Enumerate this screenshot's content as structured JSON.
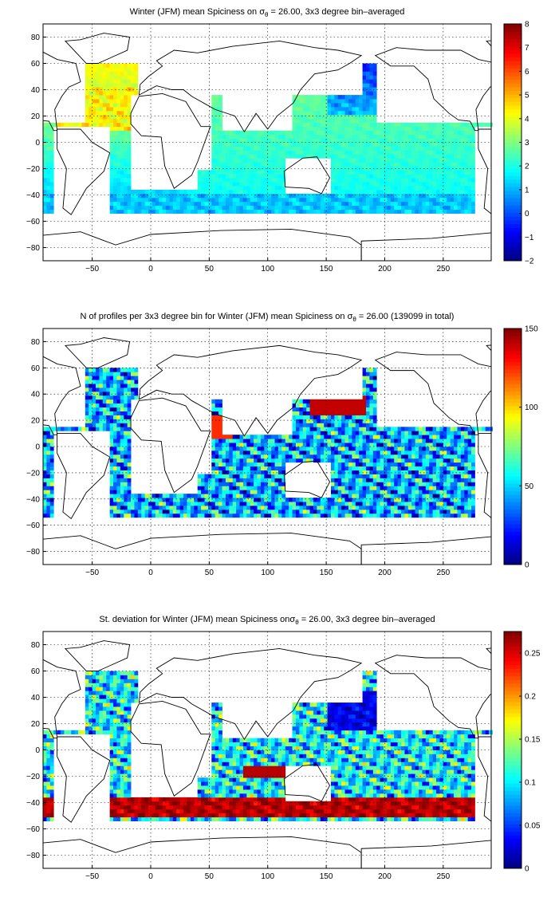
{
  "chart_data": [
    {
      "type": "heatmap",
      "title": "Winter (JFM) mean Spiciness on σθ = 26.00, 3x3 degree bin–averaged",
      "title_parts": {
        "pre": "Winter (JFM) mean Spiciness on σ",
        "sub": "θ",
        "post": " = 26.00, 3x3 degree bin–averaged"
      },
      "x_ticks": [
        -50,
        0,
        50,
        100,
        150,
        200,
        250
      ],
      "y_ticks": [
        80,
        60,
        40,
        20,
        0,
        -20,
        -40,
        -60,
        -80
      ],
      "xlim": [
        -92,
        291
      ],
      "ylim": [
        -90,
        90
      ],
      "colorbar": {
        "ticks": [
          8,
          7,
          6,
          5,
          4,
          3,
          2,
          1,
          0,
          -1,
          -2
        ],
        "range": [
          -2,
          8
        ]
      },
      "regions": [
        {
          "lon": [
            -75,
            -15
          ],
          "lat": [
            10,
            42
          ],
          "value": 4.4
        },
        {
          "lon": [
            -50,
            15
          ],
          "lat": [
            -30,
            10
          ],
          "value": 3.1
        },
        {
          "lon": [
            -60,
            20
          ],
          "lat": [
            -50,
            -30
          ],
          "value": 2.2
        },
        {
          "lon": [
            40,
            110
          ],
          "lat": [
            -35,
            20
          ],
          "value": 2.5
        },
        {
          "lon": [
            110,
            180
          ],
          "lat": [
            -45,
            10
          ],
          "value": 2.4
        },
        {
          "lon": [
            180,
            285
          ],
          "lat": [
            -45,
            5
          ],
          "value": 2.0
        },
        {
          "lon": [
            150,
            280
          ],
          "lat": [
            20,
            55
          ],
          "value": 0.4
        },
        {
          "lon": [
            120,
            280
          ],
          "lat": [
            5,
            20
          ],
          "value": 1.8
        },
        {
          "lon": [
            20,
            150
          ],
          "lat": [
            -55,
            -40
          ],
          "value": 1.3
        }
      ]
    },
    {
      "type": "heatmap",
      "title": "N of profiles per 3x3 degree bin for Winter (JFM) mean Spiciness on σθ = 26.00 (139099 in total)",
      "title_parts": {
        "pre": "N of profiles per 3x3 degree bin for Winter (JFM) mean Spiciness on σ",
        "sub": "θ",
        "post": " = 26.00 (139099 in total)"
      },
      "x_ticks": [
        -50,
        0,
        50,
        100,
        150,
        200,
        250
      ],
      "y_ticks": [
        80,
        60,
        40,
        20,
        0,
        -20,
        -40,
        -60,
        -80
      ],
      "xlim": [
        -92,
        291
      ],
      "ylim": [
        -90,
        90
      ],
      "colorbar": {
        "ticks": [
          150,
          100,
          50,
          0
        ],
        "range": [
          0,
          150
        ]
      },
      "regions": [
        {
          "lon": [
            -70,
            20
          ],
          "lat": [
            -50,
            40
          ],
          "value": 45
        },
        {
          "lon": [
            20,
            120
          ],
          "lat": [
            -50,
            25
          ],
          "value": 60
        },
        {
          "lon": [
            120,
            285
          ],
          "lat": [
            -50,
            50
          ],
          "value": 60
        },
        {
          "lon": [
            140,
            180
          ],
          "lat": [
            25,
            40
          ],
          "value": 140
        }
      ]
    },
    {
      "type": "heatmap",
      "title": "St. deviation for Winter (JFM) mean Spiciness onσθ = 26.00, 3x3 degree bin–averaged",
      "title_parts": {
        "pre": "St. deviation for Winter (JFM) mean Spiciness on",
        "sub": "θ",
        "post": " = 26.00, 3x3 degree bin–averaged",
        "sigma": "σ"
      },
      "x_ticks": [
        -50,
        0,
        50,
        100,
        150,
        200,
        250
      ],
      "y_ticks": [
        80,
        60,
        40,
        20,
        0,
        -20,
        -40,
        -60,
        -80
      ],
      "xlim": [
        -92,
        291
      ],
      "ylim": [
        -90,
        90
      ],
      "colorbar": {
        "ticks": [
          0.25,
          0.2,
          0.15,
          0.1,
          0.05,
          0
        ],
        "range": [
          0,
          0.275
        ]
      },
      "regions": [
        {
          "lon": [
            -60,
            20
          ],
          "lat": [
            -30,
            35
          ],
          "value": 0.12
        },
        {
          "lon": [
            -60,
            40
          ],
          "lat": [
            -50,
            -35
          ],
          "value": 0.27
        },
        {
          "lon": [
            150,
            280
          ],
          "lat": [
            15,
            45
          ],
          "value": 0.03
        },
        {
          "lon": [
            50,
            140
          ],
          "lat": [
            -40,
            10
          ],
          "value": 0.15
        },
        {
          "lon": [
            150,
            290
          ],
          "lat": [
            -50,
            0
          ],
          "value": 0.12
        }
      ]
    }
  ]
}
